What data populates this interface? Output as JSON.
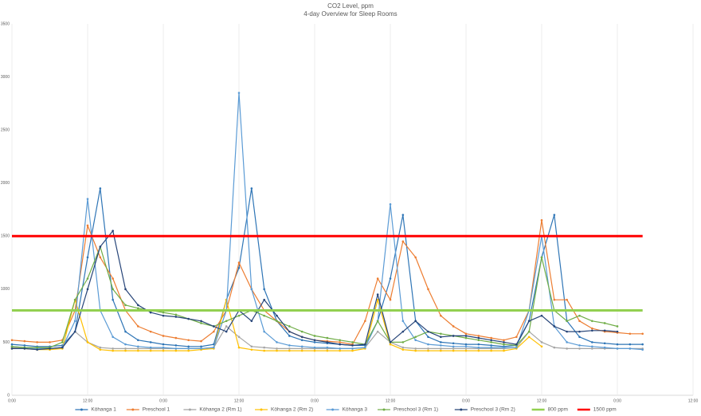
{
  "chart_data": {
    "type": "line",
    "title": "CO2 Level, ppm",
    "subtitle": "4-day Overview for Sleep Rooms",
    "x": [
      0,
      2,
      4,
      6,
      8,
      10,
      12,
      14,
      16,
      18,
      20,
      22,
      24,
      26,
      28,
      30,
      32,
      34,
      36,
      38,
      40,
      42,
      44,
      46,
      48,
      50,
      52,
      54,
      56,
      58,
      60,
      62,
      64,
      66,
      68,
      70,
      72,
      74,
      76,
      78,
      80,
      82,
      84,
      86,
      88,
      90,
      92,
      94,
      96,
      98,
      100
    ],
    "xlim": [
      0,
      108
    ],
    "xticks": [
      {
        "value": 0,
        "label": "0:00"
      },
      {
        "value": 12,
        "label": "12:00"
      },
      {
        "value": 24,
        "label": "0:00"
      },
      {
        "value": 36,
        "label": "12:00"
      },
      {
        "value": 48,
        "label": "0:00"
      },
      {
        "value": 60,
        "label": "12:00"
      },
      {
        "value": 72,
        "label": "0:00"
      },
      {
        "value": 84,
        "label": "12:00"
      },
      {
        "value": 96,
        "label": "0:00"
      },
      {
        "value": 108,
        "label": "12:00"
      }
    ],
    "ylim": [
      0,
      3500
    ],
    "yticks": [
      0,
      500,
      1000,
      1500,
      2000,
      2500,
      3000,
      3500
    ],
    "grid": "x",
    "legend": "bottom",
    "series": [
      {
        "name": "Kōhanga 1",
        "color": "#2e75b6",
        "markers": true,
        "values": [
          480,
          470,
          460,
          460,
          470,
          600,
          1300,
          1950,
          900,
          600,
          520,
          500,
          480,
          470,
          460,
          460,
          480,
          900,
          1200,
          1950,
          1000,
          700,
          560,
          520,
          500,
          490,
          480,
          470,
          470,
          700,
          1100,
          1700,
          700,
          550,
          500,
          490,
          480,
          480,
          470,
          460,
          470,
          700,
          1300,
          1700,
          700,
          550,
          500,
          490,
          480,
          480,
          480
        ]
      },
      {
        "name": "Preschool 1",
        "color": "#ed7d31",
        "markers": true,
        "values": [
          520,
          510,
          500,
          500,
          520,
          800,
          1600,
          1300,
          1100,
          800,
          650,
          600,
          560,
          540,
          520,
          510,
          600,
          800,
          1250,
          1000,
          800,
          700,
          600,
          550,
          520,
          510,
          500,
          480,
          700,
          1100,
          900,
          1450,
          1300,
          1000,
          750,
          650,
          580,
          560,
          540,
          520,
          550,
          800,
          1650,
          900,
          900,
          700,
          630,
          600,
          590,
          580,
          580
        ]
      },
      {
        "name": "Kōhanga 2 (Rm 1)",
        "color": "#a5a5a5",
        "markers": true,
        "values": [
          450,
          450,
          440,
          440,
          450,
          600,
          500,
          450,
          440,
          440,
          440,
          440,
          440,
          440,
          440,
          440,
          450,
          650,
          550,
          460,
          450,
          440,
          440,
          440,
          440,
          440,
          440,
          440,
          450,
          600,
          500,
          450,
          440,
          440,
          440,
          440,
          440,
          440,
          440,
          440,
          450,
          600,
          500,
          450,
          440,
          440,
          440,
          440,
          440,
          440,
          440
        ]
      },
      {
        "name": "Kōhanga 2 (Rm 2)",
        "color": "#ffc000",
        "markers": true,
        "values": [
          440,
          440,
          430,
          430,
          440,
          900,
          500,
          430,
          420,
          420,
          420,
          420,
          420,
          420,
          420,
          430,
          440,
          900,
          450,
          430,
          420,
          420,
          420,
          420,
          420,
          420,
          420,
          420,
          440,
          900,
          480,
          430,
          420,
          420,
          420,
          420,
          420,
          420,
          420,
          420,
          440,
          550,
          460,
          null,
          null,
          null,
          null,
          null,
          null,
          null,
          null
        ]
      },
      {
        "name": "Kōhanga 3",
        "color": "#5b9bd5",
        "markers": true,
        "values": [
          460,
          450,
          440,
          440,
          450,
          700,
          1850,
          800,
          550,
          480,
          460,
          450,
          450,
          440,
          440,
          440,
          450,
          800,
          2850,
          1000,
          600,
          500,
          470,
          460,
          450,
          450,
          440,
          440,
          450,
          700,
          1800,
          700,
          520,
          480,
          470,
          460,
          460,
          450,
          450,
          450,
          450,
          800,
          1500,
          650,
          500,
          470,
          460,
          450,
          440,
          440,
          430
        ]
      },
      {
        "name": "Preschool 3 (Rm 1)",
        "color": "#70ad47",
        "markers": true,
        "values": [
          460,
          450,
          450,
          450,
          500,
          900,
          1100,
          1400,
          1000,
          850,
          820,
          800,
          780,
          760,
          720,
          680,
          650,
          700,
          750,
          800,
          750,
          700,
          650,
          600,
          560,
          540,
          520,
          500,
          480,
          700,
          500,
          500,
          550,
          600,
          580,
          560,
          540,
          520,
          500,
          480,
          470,
          600,
          1300,
          800,
          700,
          750,
          700,
          680,
          650,
          null,
          null
        ]
      },
      {
        "name": "Preschool 3 (Rm 2)",
        "color": "#264478",
        "markers": true,
        "values": [
          440,
          440,
          430,
          440,
          450,
          600,
          1000,
          1400,
          1550,
          1000,
          850,
          780,
          750,
          740,
          720,
          700,
          650,
          600,
          800,
          700,
          900,
          750,
          600,
          550,
          520,
          500,
          480,
          470,
          480,
          950,
          500,
          600,
          700,
          600,
          550,
          560,
          560,
          540,
          520,
          500,
          480,
          700,
          750,
          650,
          600,
          600,
          610,
          610,
          600,
          null,
          null
        ]
      },
      {
        "name": "800 ppm",
        "color": "#92d050",
        "markers": false,
        "width": 3,
        "values": [
          800,
          800,
          800,
          800,
          800,
          800,
          800,
          800,
          800,
          800,
          800,
          800,
          800,
          800,
          800,
          800,
          800,
          800,
          800,
          800,
          800,
          800,
          800,
          800,
          800,
          800,
          800,
          800,
          800,
          800,
          800,
          800,
          800,
          800,
          800,
          800,
          800,
          800,
          800,
          800,
          800,
          800,
          800,
          800,
          800,
          800,
          800,
          800,
          800,
          800,
          800
        ]
      },
      {
        "name": "1500 ppm",
        "color": "#ff0000",
        "markers": false,
        "width": 3,
        "values": [
          1500,
          1500,
          1500,
          1500,
          1500,
          1500,
          1500,
          1500,
          1500,
          1500,
          1500,
          1500,
          1500,
          1500,
          1500,
          1500,
          1500,
          1500,
          1500,
          1500,
          1500,
          1500,
          1500,
          1500,
          1500,
          1500,
          1500,
          1500,
          1500,
          1500,
          1500,
          1500,
          1500,
          1500,
          1500,
          1500,
          1500,
          1500,
          1500,
          1500,
          1500,
          1500,
          1500,
          1500,
          1500,
          1500,
          1500,
          1500,
          1500,
          1500,
          1500
        ]
      }
    ]
  }
}
